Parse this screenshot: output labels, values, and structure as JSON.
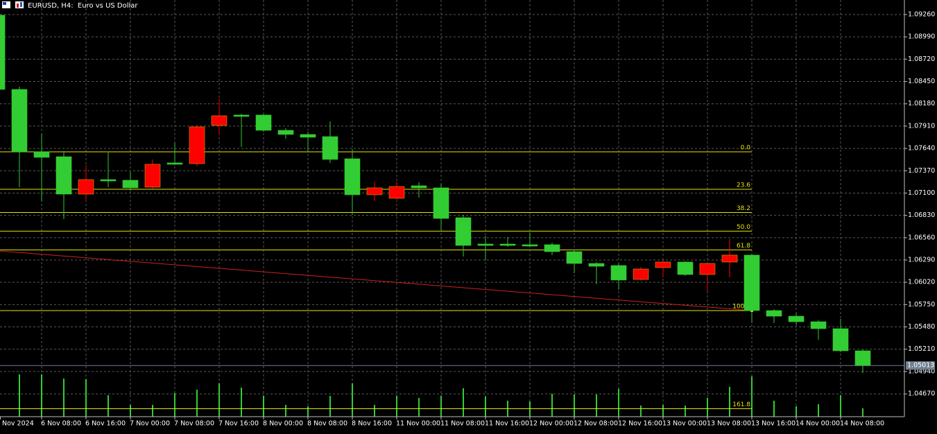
{
  "chart_data": {
    "type": "candlestick",
    "title": "EURUSD, H4:  Euro vs US Dollar",
    "categories": [
      "Nov 2024",
      null,
      "6 Nov 08:00",
      null,
      "6 Nov 16:00",
      null,
      "7 Nov 00:00",
      null,
      "7 Nov 08:00",
      null,
      "7 Nov 16:00",
      null,
      "8 Nov 00:00",
      null,
      "8 Nov 08:00",
      null,
      "8 Nov 16:00",
      null,
      "11 Nov 00:00",
      null,
      "11 Nov 08:00",
      null,
      "11 Nov 16:00",
      null,
      "12 Nov 00:00",
      null,
      "12 Nov 08:00",
      null,
      "12 Nov 16:00",
      null,
      "13 Nov 00:00",
      null,
      "13 Nov 08:00",
      null,
      "13 Nov 16:00",
      null,
      "14 Nov 00:00",
      null,
      "14 Nov 08:00",
      null
    ],
    "open": [
      1.09252,
      1.08354,
      1.07599,
      1.0754,
      1.07087,
      1.07263,
      1.07255,
      1.07171,
      1.07465,
      1.07456,
      1.07918,
      1.08044,
      1.08044,
      1.07859,
      1.07809,
      1.07783,
      1.07515,
      1.07079,
      1.07037,
      1.07188,
      1.07163,
      1.06802,
      1.06483,
      1.06483,
      1.06475,
      1.06475,
      1.06391,
      1.06248,
      1.06223,
      1.06055,
      1.06198,
      1.06265,
      1.06114,
      1.06265,
      1.06349,
      1.05678,
      1.0561,
      1.05543,
      1.05459,
      1.05191
    ],
    "high": [
      1.09268,
      1.08387,
      1.07817,
      1.07607,
      1.07439,
      1.0759,
      1.07356,
      1.07507,
      1.07708,
      1.07926,
      1.08245,
      1.0806,
      1.08052,
      1.07884,
      1.07842,
      1.07968,
      1.07632,
      1.07238,
      1.07238,
      1.0723,
      1.07213,
      1.06835,
      1.06584,
      1.06567,
      1.06626,
      1.065,
      1.06399,
      1.06265,
      1.06248,
      1.06206,
      1.0629,
      1.06273,
      1.06265,
      1.06542,
      1.06366,
      1.05694,
      1.05644,
      1.0556,
      1.05577,
      1.05208
    ],
    "low": [
      1.08346,
      1.07171,
      1.07003,
      1.06785,
      1.07003,
      1.07171,
      1.07129,
      1.07154,
      1.07439,
      1.07423,
      1.078,
      1.07658,
      1.07842,
      1.07758,
      1.0759,
      1.07465,
      1.06835,
      1.07003,
      1.07003,
      1.07045,
      1.06651,
      1.06332,
      1.06282,
      1.06449,
      1.06449,
      1.06349,
      1.06131,
      1.05996,
      1.05929,
      1.06038,
      1.0608,
      1.06097,
      1.05912,
      1.0608,
      1.05527,
      1.05527,
      1.0551,
      1.05325,
      1.05174,
      1.04922
    ],
    "close": [
      1.08354,
      1.07599,
      1.07532,
      1.07087,
      1.07263,
      1.07246,
      1.07163,
      1.07448,
      1.07448,
      1.07901,
      1.08035,
      1.08027,
      1.07859,
      1.07809,
      1.07775,
      1.07507,
      1.07079,
      1.07163,
      1.07179,
      1.07163,
      1.06793,
      1.06466,
      1.06466,
      1.06466,
      1.06458,
      1.06391,
      1.06248,
      1.06214,
      1.06047,
      1.06181,
      1.06265,
      1.06114,
      1.06248,
      1.06349,
      1.05678,
      1.0561,
      1.05543,
      1.05459,
      1.05191,
      1.05013
    ],
    "volumes": [
      null,
      61,
      61,
      55,
      54,
      31,
      17,
      17,
      34,
      39,
      48,
      42,
      30,
      17,
      15,
      30,
      48,
      17,
      30,
      27,
      30,
      41,
      29,
      23,
      22,
      33,
      32,
      32,
      40,
      16,
      17,
      16,
      27,
      43,
      58,
      23,
      15,
      18,
      31,
      12
    ],
    "up_color": "#ff0000",
    "down_color": "#32cd32",
    "volume_color": "#32cd32",
    "ylim": [
      1.04394,
      1.09436
    ],
    "yticks": [
      {
        "value": 1.0926,
        "label": "1.09260"
      },
      {
        "value": 1.0899,
        "label": "1.08990"
      },
      {
        "value": 1.0872,
        "label": "1.08720"
      },
      {
        "value": 1.0845,
        "label": "1.08450"
      },
      {
        "value": 1.0818,
        "label": "1.08180"
      },
      {
        "value": 1.0791,
        "label": "1.07910"
      },
      {
        "value": 1.0764,
        "label": "1.07640"
      },
      {
        "value": 1.0737,
        "label": "1.07370"
      },
      {
        "value": 1.071,
        "label": "1.07100"
      },
      {
        "value": 1.0683,
        "label": "1.06830"
      },
      {
        "value": 1.0656,
        "label": "1.06560"
      },
      {
        "value": 1.0629,
        "label": "1.06290"
      },
      {
        "value": 1.0602,
        "label": "1.06020"
      },
      {
        "value": 1.0575,
        "label": "1.05750"
      },
      {
        "value": 1.0548,
        "label": "1.05480"
      },
      {
        "value": 1.0521,
        "label": "1.05210"
      },
      {
        "value": 1.0494,
        "label": "1.04940"
      },
      {
        "value": 1.0467,
        "label": "1.04670"
      }
    ],
    "grid": true,
    "fibonacci": {
      "color": "#e6e600",
      "levels": [
        {
          "level": "0.0",
          "price": 1.07599
        },
        {
          "level": "23.6",
          "price": 1.07146
        },
        {
          "level": "38.2",
          "price": 1.06865
        },
        {
          "level": "50.0",
          "price": 1.06639
        },
        {
          "level": "61.8",
          "price": 1.06412
        },
        {
          "level": "100.0",
          "price": 1.05678
        },
        {
          "level": "161.8",
          "price": 1.04491
        }
      ]
    },
    "trendline": {
      "color": "#d02020",
      "start": 1.06399,
      "end": 1.05678
    },
    "last_price": 1.05013
  }
}
